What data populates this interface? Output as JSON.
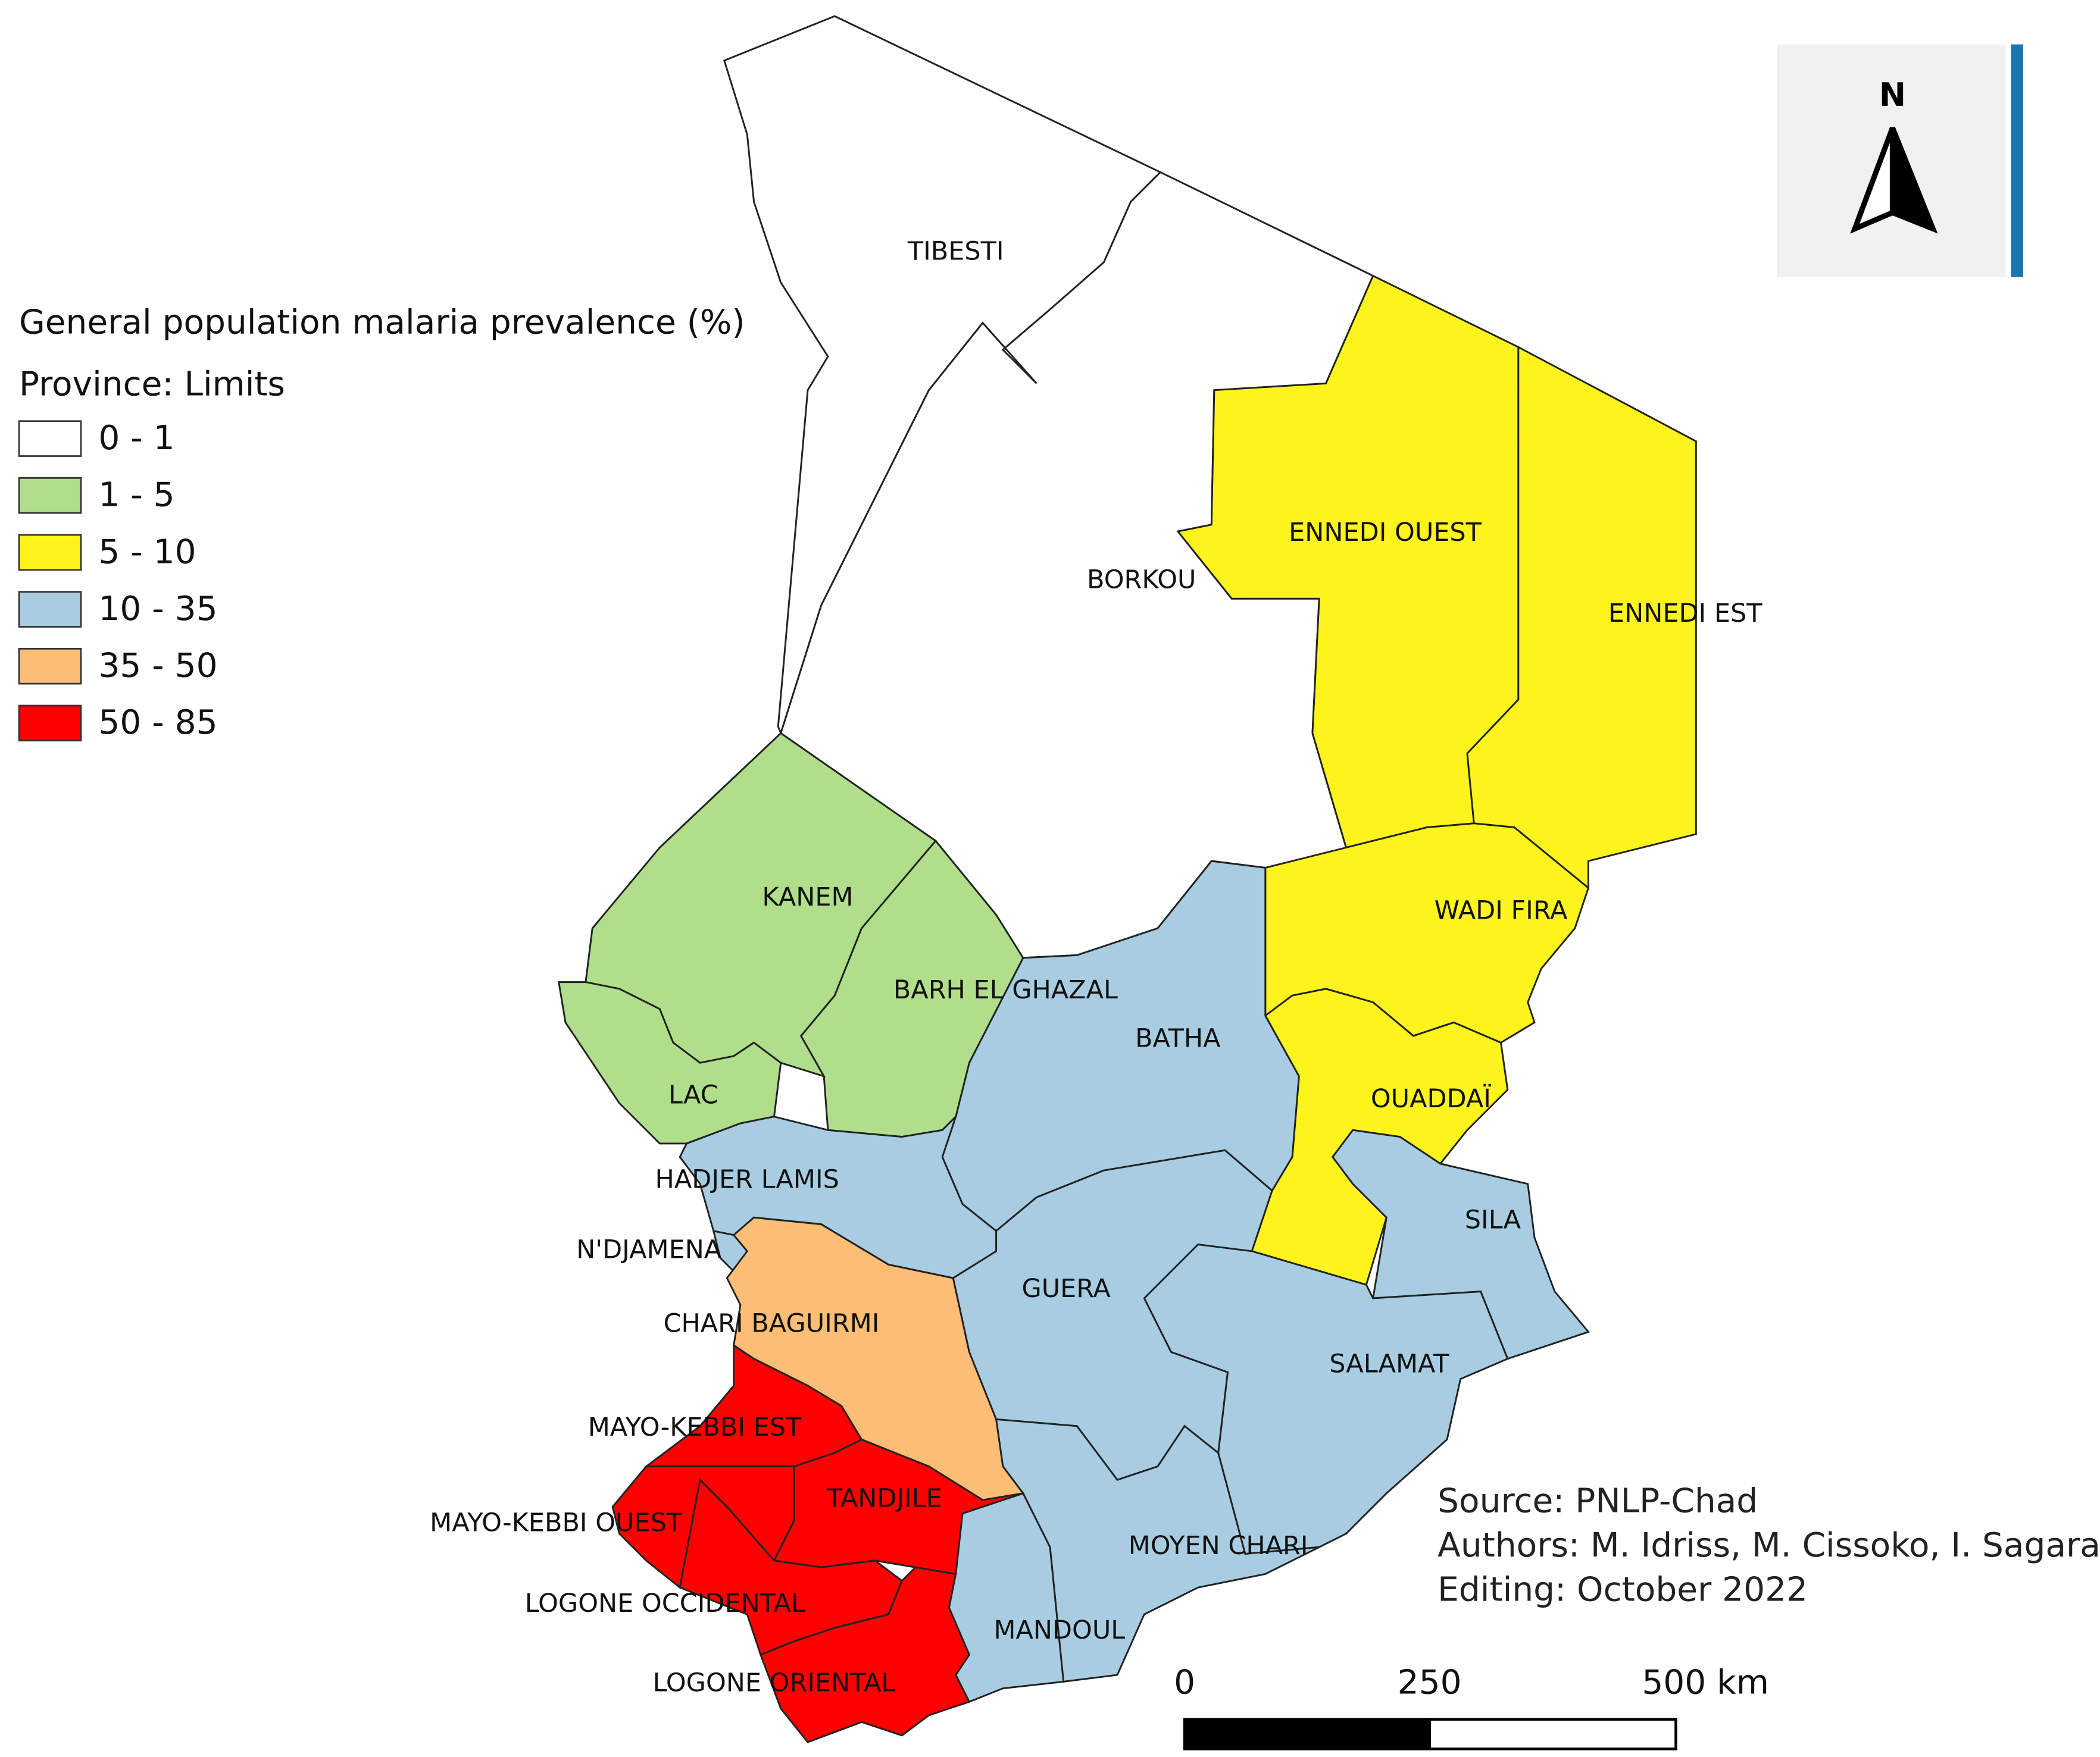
{
  "legend": {
    "title": "General population malaria prevalence (%)",
    "subtitle": "Province: Limits",
    "classes": [
      {
        "label": "0 - 1",
        "color": "#ffffff"
      },
      {
        "label": "1 - 5",
        "color": "#b0de8a"
      },
      {
        "label": "5 - 10",
        "color": "#fdf31d"
      },
      {
        "label": "10 - 35",
        "color": "#a8cde2"
      },
      {
        "label": "35 - 50",
        "color": "#fcbd74"
      },
      {
        "label": "50 - 85",
        "color": "#fe0000"
      }
    ]
  },
  "provinces": [
    {
      "name": "TIBESTI",
      "class": 0
    },
    {
      "name": "BORKOU",
      "class": 0
    },
    {
      "name": "ENNEDI OUEST",
      "class": 2
    },
    {
      "name": "ENNEDI EST",
      "class": 2
    },
    {
      "name": "WADI FIRA",
      "class": 2
    },
    {
      "name": "OUADDAÏ",
      "class": 2
    },
    {
      "name": "SILA",
      "class": 3
    },
    {
      "name": "SALAMAT",
      "class": 3
    },
    {
      "name": "BATHA",
      "class": 3
    },
    {
      "name": "GUERA",
      "class": 3
    },
    {
      "name": "MOYEN CHARI",
      "class": 3
    },
    {
      "name": "MANDOUL",
      "class": 3
    },
    {
      "name": "BARH EL GHAZAL",
      "class": 1
    },
    {
      "name": "KANEM",
      "class": 1
    },
    {
      "name": "LAC",
      "class": 1
    },
    {
      "name": "HADJER LAMIS",
      "class": 3
    },
    {
      "name": "N'DJAMENA",
      "class": 3
    },
    {
      "name": "CHARI BAGUIRMI",
      "class": 4
    },
    {
      "name": "MAYO-KEBBI EST",
      "class": 5
    },
    {
      "name": "TANDJILE",
      "class": 5
    },
    {
      "name": "MAYO-KEBBI OUEST",
      "class": 5
    },
    {
      "name": "LOGONE OCCIDENTAL",
      "class": 5
    },
    {
      "name": "LOGONE ORIENTAL",
      "class": 5
    }
  ],
  "credits": [
    "Source: PNLP-Chad",
    "Authors: M. Idriss, M. Cissoko, I. Sagara",
    "Editing: October 2022"
  ],
  "scale_bar": {
    "labels": [
      "0",
      "250",
      "500 km"
    ]
  },
  "north_arrow": "N"
}
